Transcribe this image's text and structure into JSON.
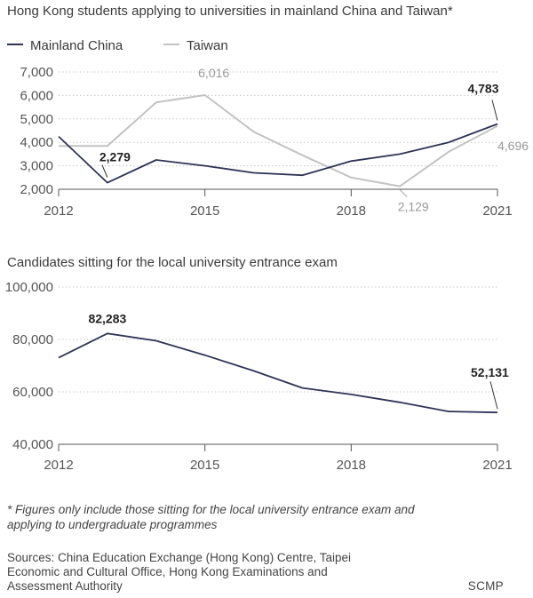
{
  "colors": {
    "mainland": "#2f3455",
    "taiwan": "#c3c3c3",
    "grid": "#c8c8c8",
    "axis": "#555555"
  },
  "chart_data": [
    {
      "type": "line",
      "title": "Hong Kong students applying to universities in mainland China and Taiwan*",
      "x": [
        2012,
        2013,
        2014,
        2015,
        2016,
        2017,
        2018,
        2019,
        2020,
        2021
      ],
      "xticks": [
        "2012",
        "2015",
        "2018",
        "2021"
      ],
      "xlim": [
        2012,
        2021
      ],
      "ylim": [
        2000,
        7000
      ],
      "yticks": [
        2000,
        3000,
        4000,
        5000,
        6000,
        7000
      ],
      "ytick_labels": [
        "2,000",
        "3,000",
        "4,000",
        "5,000",
        "6,000",
        "7,000"
      ],
      "grid": true,
      "legend": "top-left",
      "series": [
        {
          "name": "Mainland China",
          "values": [
            4250,
            2279,
            3250,
            3000,
            2700,
            2600,
            3200,
            3500,
            4000,
            4783
          ]
        },
        {
          "name": "Taiwan",
          "values": [
            3850,
            3850,
            5700,
            6016,
            4450,
            3450,
            2500,
            2129,
            3600,
            4696
          ]
        }
      ],
      "annotations": [
        {
          "label": "2,279",
          "series": "Mainland China",
          "x": 2013
        },
        {
          "label": "6,016",
          "series": "Taiwan",
          "x": 2015
        },
        {
          "label": "2,129",
          "series": "Taiwan",
          "x": 2019
        },
        {
          "label": "4,783",
          "series": "Mainland China",
          "x": 2021
        },
        {
          "label": "4,696",
          "series": "Taiwan",
          "x": 2021
        }
      ]
    },
    {
      "type": "line",
      "title": "Candidates sitting for the local university entrance exam",
      "x": [
        2012,
        2013,
        2014,
        2015,
        2016,
        2017,
        2018,
        2019,
        2020,
        2021
      ],
      "xticks": [
        "2012",
        "2015",
        "2018",
        "2021"
      ],
      "xlim": [
        2012,
        2021
      ],
      "ylim": [
        40000,
        100000
      ],
      "yticks": [
        40000,
        60000,
        80000,
        100000
      ],
      "ytick_labels": [
        "40,000",
        "60,000",
        "80,000",
        "100,000"
      ],
      "grid": true,
      "series": [
        {
          "values": [
            73000,
            82283,
            79500,
            74000,
            68000,
            61500,
            59000,
            56000,
            52500,
            52131
          ]
        }
      ],
      "annotations": [
        {
          "label": "82,283",
          "x": 2013
        },
        {
          "label": "52,131",
          "x": 2021
        }
      ]
    }
  ],
  "note": "* Figures only include those sitting for the local university entrance exam and applying to undergraduate programmes",
  "sources": "Sources: China Education Exchange (Hong Kong) Centre, Taipei Economic and Cultural Office, Hong Kong Examinations and Assessment Authority",
  "brand": "SCMP"
}
